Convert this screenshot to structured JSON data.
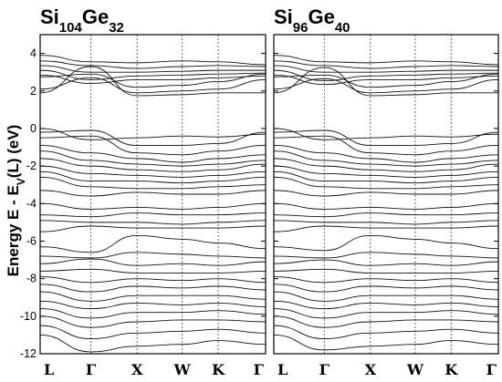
{
  "chart_data": {
    "type": "line",
    "ylabel": {
      "main": "Energy E - E",
      "sub": "V",
      "tail": "(L) (eV)"
    },
    "ylim": [
      -12,
      5
    ],
    "yticks": [
      4,
      2,
      0,
      -2,
      -4,
      -6,
      -8,
      -10,
      -12
    ],
    "kpath": [
      "L",
      "Γ",
      "X",
      "W",
      "K",
      "Γ"
    ],
    "kpos": [
      0,
      0.225,
      0.43,
      0.63,
      0.79,
      1.0
    ],
    "colors": {
      "bands": "#111111",
      "hsym_lines": "#5a5ad6",
      "frame": "#000000"
    },
    "panels": [
      {
        "title": {
          "e1": "Si",
          "n1": "104",
          "e2": "Ge",
          "n2": "32"
        },
        "series": [
          {
            "y": [
              3.9,
              3.55,
              3.5,
              3.6,
              3.55,
              3.4
            ]
          },
          {
            "y": [
              3.6,
              3.35,
              3.2,
              3.3,
              3.35,
              3.3
            ]
          },
          {
            "y": [
              3.35,
              3.0,
              3.0,
              3.05,
              3.1,
              3.1
            ]
          },
          {
            "y": [
              3.1,
              2.6,
              2.8,
              2.85,
              2.9,
              2.95
            ]
          },
          {
            "y": [
              2.85,
              2.4,
              2.6,
              2.6,
              2.7,
              2.8
            ]
          },
          {
            "y": [
              2.75,
              2.9,
              2.2,
              2.3,
              2.5,
              2.9
            ]
          },
          {
            "y": [
              2.1,
              2.7,
              1.9,
              2.0,
              2.1,
              2.6
            ]
          },
          {
            "y": [
              1.9,
              3.3,
              1.75,
              1.8,
              1.9,
              1.9
            ]
          },
          {
            "y": [
              0.0,
              -0.6,
              -0.5,
              -0.4,
              -0.45,
              -0.3
            ]
          },
          {
            "y": [
              -0.2,
              -0.1,
              -0.9,
              -0.9,
              -0.8,
              -0.2
            ]
          },
          {
            "y": [
              -0.5,
              -0.4,
              -1.3,
              -1.4,
              -1.2,
              -0.9
            ]
          },
          {
            "y": [
              -0.9,
              -1.3,
              -1.6,
              -1.8,
              -1.6,
              -1.4
            ]
          },
          {
            "y": [
              -1.2,
              -1.7,
              -1.9,
              -2.0,
              -1.9,
              -1.7
            ]
          },
          {
            "y": [
              -1.6,
              -2.0,
              -2.2,
              -2.3,
              -2.2,
              -1.9
            ]
          },
          {
            "y": [
              -2.0,
              -2.4,
              -2.5,
              -2.6,
              -2.5,
              -2.3
            ]
          },
          {
            "y": [
              -2.3,
              -2.8,
              -2.8,
              -2.9,
              -2.8,
              -2.6
            ]
          },
          {
            "y": [
              -2.6,
              -3.1,
              -3.2,
              -3.2,
              -3.1,
              -3.0
            ]
          },
          {
            "y": [
              -3.3,
              -3.6,
              -3.4,
              -3.5,
              -3.5,
              -3.3
            ]
          },
          {
            "y": [
              -4.0,
              -4.3,
              -4.2,
              -4.3,
              -4.2,
              -4.0
            ]
          },
          {
            "y": [
              -4.6,
              -4.7,
              -4.5,
              -4.6,
              -4.6,
              -4.5
            ]
          },
          {
            "y": [
              -4.9,
              -5.0,
              -5.0,
              -5.1,
              -5.0,
              -4.9
            ]
          },
          {
            "y": [
              -5.5,
              -5.2,
              -5.3,
              -5.3,
              -5.3,
              -5.2
            ]
          },
          {
            "y": [
              -6.3,
              -6.6,
              -5.7,
              -5.9,
              -6.1,
              -6.4
            ]
          },
          {
            "y": [
              -6.8,
              -6.9,
              -6.6,
              -6.7,
              -6.8,
              -6.9
            ]
          },
          {
            "y": [
              -7.2,
              -6.95,
              -7.3,
              -7.2,
              -7.3,
              -7.1
            ]
          },
          {
            "y": [
              -7.6,
              -7.5,
              -7.7,
              -7.7,
              -7.7,
              -7.6
            ]
          },
          {
            "y": [
              -7.9,
              -8.2,
              -8.0,
              -8.1,
              -8.0,
              -8.2
            ]
          },
          {
            "y": [
              -8.3,
              -8.7,
              -8.4,
              -8.5,
              -8.4,
              -8.6
            ]
          },
          {
            "y": [
              -8.7,
              -9.2,
              -8.9,
              -8.9,
              -8.9,
              -9.1
            ]
          },
          {
            "y": [
              -9.2,
              -9.6,
              -9.3,
              -9.4,
              -9.3,
              -9.5
            ]
          },
          {
            "y": [
              -9.6,
              -10.1,
              -9.8,
              -9.8,
              -9.7,
              -9.9
            ]
          },
          {
            "y": [
              -10.0,
              -10.6,
              -10.3,
              -10.2,
              -10.2,
              -10.3
            ]
          },
          {
            "y": [
              -10.5,
              -11.2,
              -10.9,
              -10.8,
              -10.7,
              -10.9
            ]
          },
          {
            "y": [
              -11.0,
              -11.9,
              -11.6,
              -11.5,
              -11.3,
              -11.5
            ]
          }
        ]
      },
      {
        "title": {
          "e1": "Si",
          "n1": "96",
          "e2": "Ge",
          "n2": "40"
        },
        "series": [
          {
            "y": [
              3.9,
              3.55,
              3.5,
              3.6,
              3.55,
              3.4
            ]
          },
          {
            "y": [
              3.6,
              3.35,
              3.2,
              3.3,
              3.35,
              3.3
            ]
          },
          {
            "y": [
              3.35,
              3.0,
              3.0,
              3.05,
              3.1,
              3.1
            ]
          },
          {
            "y": [
              3.1,
              2.55,
              2.8,
              2.85,
              2.9,
              2.95
            ]
          },
          {
            "y": [
              2.85,
              2.35,
              2.6,
              2.6,
              2.7,
              2.8
            ]
          },
          {
            "y": [
              2.75,
              2.85,
              2.2,
              2.3,
              2.5,
              2.9
            ]
          },
          {
            "y": [
              2.1,
              2.65,
              1.9,
              2.0,
              2.1,
              2.6
            ]
          },
          {
            "y": [
              1.9,
              3.25,
              1.75,
              1.8,
              1.9,
              1.9
            ]
          },
          {
            "y": [
              0.0,
              -0.6,
              -0.5,
              -0.4,
              -0.45,
              -0.3
            ]
          },
          {
            "y": [
              -0.2,
              -0.1,
              -0.9,
              -0.9,
              -0.8,
              -0.2
            ]
          },
          {
            "y": [
              -0.5,
              -0.4,
              -1.3,
              -1.4,
              -1.2,
              -0.9
            ]
          },
          {
            "y": [
              -0.9,
              -1.3,
              -1.6,
              -1.8,
              -1.6,
              -1.4
            ]
          },
          {
            "y": [
              -1.2,
              -1.7,
              -1.9,
              -2.0,
              -1.9,
              -1.7
            ]
          },
          {
            "y": [
              -1.6,
              -2.0,
              -2.2,
              -2.3,
              -2.2,
              -1.9
            ]
          },
          {
            "y": [
              -2.0,
              -2.4,
              -2.5,
              -2.6,
              -2.5,
              -2.3
            ]
          },
          {
            "y": [
              -2.3,
              -2.8,
              -2.8,
              -2.9,
              -2.8,
              -2.6
            ]
          },
          {
            "y": [
              -2.6,
              -3.1,
              -3.2,
              -3.2,
              -3.1,
              -3.0
            ]
          },
          {
            "y": [
              -3.3,
              -3.6,
              -3.4,
              -3.5,
              -3.5,
              -3.3
            ]
          },
          {
            "y": [
              -4.0,
              -4.3,
              -4.2,
              -4.3,
              -4.2,
              -4.0
            ]
          },
          {
            "y": [
              -4.6,
              -4.7,
              -4.5,
              -4.6,
              -4.6,
              -4.5
            ]
          },
          {
            "y": [
              -4.9,
              -5.0,
              -5.0,
              -5.1,
              -5.0,
              -4.9
            ]
          },
          {
            "y": [
              -5.5,
              -5.2,
              -5.3,
              -5.3,
              -5.3,
              -5.2
            ]
          },
          {
            "y": [
              -6.3,
              -6.5,
              -5.7,
              -5.9,
              -6.1,
              -6.4
            ]
          },
          {
            "y": [
              -6.8,
              -6.9,
              -6.6,
              -6.7,
              -6.8,
              -6.9
            ]
          },
          {
            "y": [
              -7.2,
              -7.0,
              -7.3,
              -7.2,
              -7.3,
              -7.1
            ]
          },
          {
            "y": [
              -7.6,
              -7.5,
              -7.7,
              -7.7,
              -7.7,
              -7.6
            ]
          },
          {
            "y": [
              -7.9,
              -8.2,
              -8.0,
              -8.1,
              -8.0,
              -8.2
            ]
          },
          {
            "y": [
              -8.3,
              -8.7,
              -8.4,
              -8.5,
              -8.4,
              -8.6
            ]
          },
          {
            "y": [
              -8.7,
              -9.2,
              -8.9,
              -8.9,
              -8.9,
              -9.1
            ]
          },
          {
            "y": [
              -9.2,
              -9.6,
              -9.3,
              -9.4,
              -9.3,
              -9.5
            ]
          },
          {
            "y": [
              -9.6,
              -10.1,
              -9.8,
              -9.8,
              -9.7,
              -9.9
            ]
          },
          {
            "y": [
              -10.0,
              -10.6,
              -10.3,
              -10.2,
              -10.2,
              -10.3
            ]
          },
          {
            "y": [
              -10.5,
              -11.2,
              -10.9,
              -10.8,
              -10.7,
              -10.9
            ]
          },
          {
            "y": [
              -11.0,
              -11.8,
              -11.6,
              -11.5,
              -11.3,
              -11.5
            ]
          }
        ]
      }
    ]
  }
}
